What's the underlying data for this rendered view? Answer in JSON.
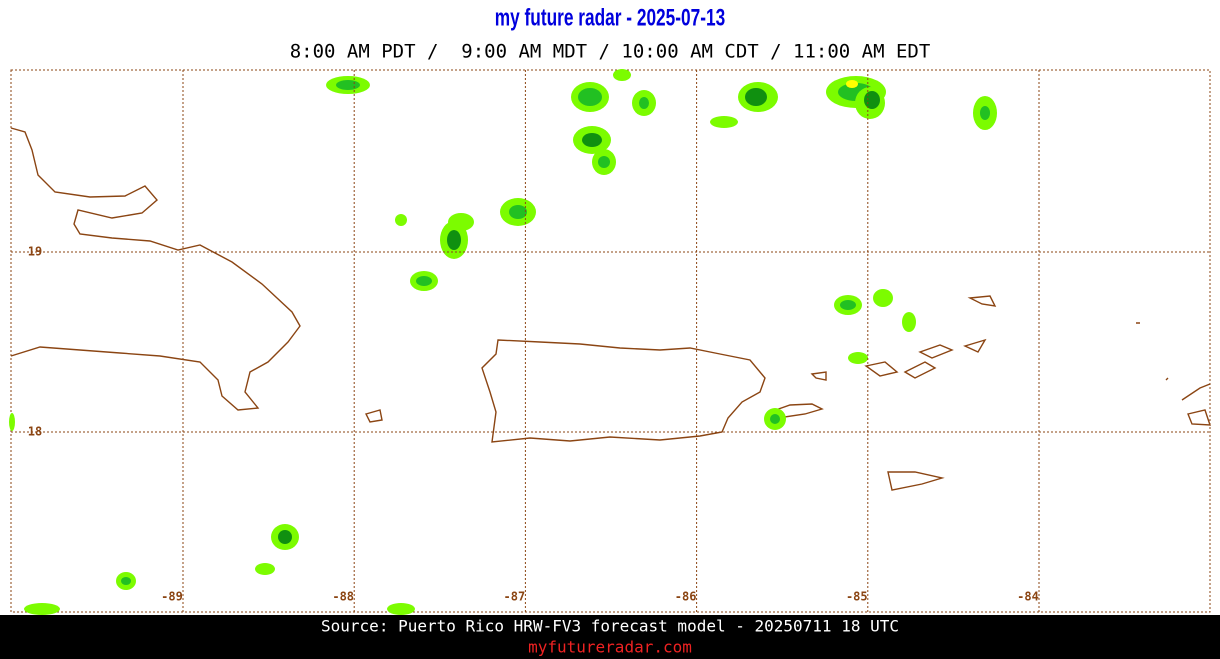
{
  "header": {
    "title": "my future radar - 2025-07-13",
    "subtitle": "8:00 AM PDT /  9:00 AM MDT / 10:00 AM CDT / 11:00 AM EDT"
  },
  "map": {
    "lat_labels": [
      19,
      18
    ],
    "lon_labels": [
      -89,
      -88,
      -87,
      -86,
      -85,
      -84
    ]
  },
  "footer": {
    "source": "Source: Puerto Rico HRW-FV3 forecast model - 20250711 18 UTC",
    "site": "myfutureradar.com"
  }
}
